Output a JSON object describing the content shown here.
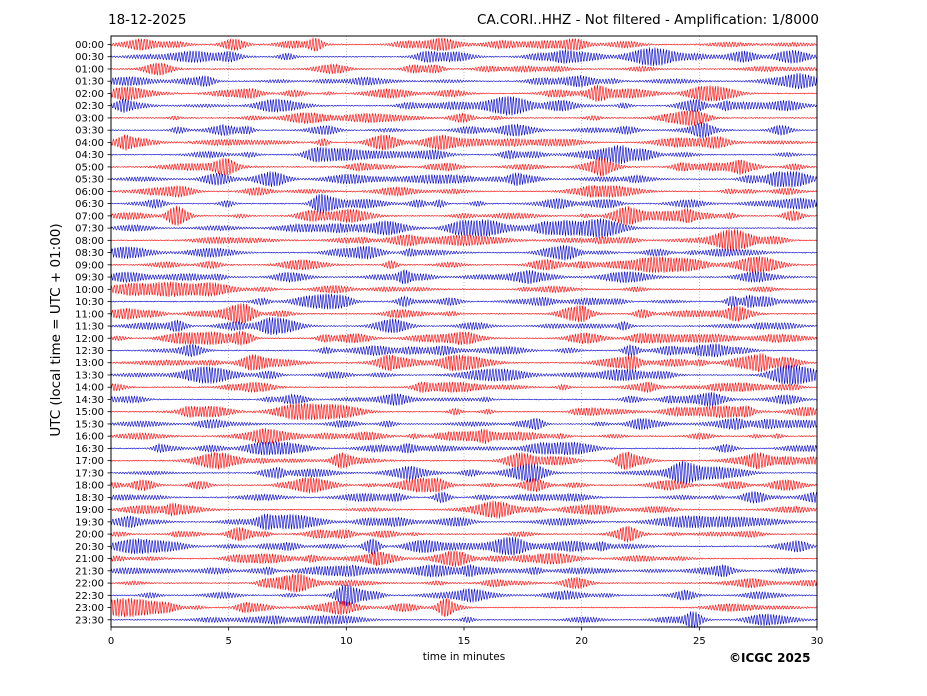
{
  "header": {
    "date": "18-12-2025",
    "title": "CA.CORI..HHZ - Not filtered - Amplification: 1/8000"
  },
  "footer": {
    "credit": "©ICGC 2025"
  },
  "colors": {
    "trace_a": "#ff0000",
    "trace_b": "#0000cc",
    "grid": "#999999",
    "axes": "#000000"
  },
  "chart_data": {
    "type": "line",
    "subtype": "seismic helicorder (drum) plot",
    "title": "CA.CORI..HHZ - Not filtered - Amplification: 1/8000",
    "subtitle": "18-12-2025",
    "xlabel": "time in minutes",
    "ylabel": "UTC (local time = UTC + 01:00)",
    "xlim": [
      0,
      30
    ],
    "x_ticks": [
      0,
      5,
      10,
      15,
      20,
      25,
      30
    ],
    "y_ticks": [
      "00:00",
      "00:30",
      "01:00",
      "01:30",
      "02:00",
      "02:30",
      "03:00",
      "03:30",
      "04:00",
      "04:30",
      "05:00",
      "05:30",
      "06:00",
      "06:30",
      "07:00",
      "07:30",
      "08:00",
      "08:30",
      "09:00",
      "09:30",
      "10:00",
      "10:30",
      "11:00",
      "11:30",
      "12:00",
      "12:30",
      "13:00",
      "13:30",
      "14:00",
      "14:30",
      "15:00",
      "15:30",
      "16:00",
      "16:30",
      "17:00",
      "17:30",
      "18:00",
      "18:30",
      "19:00",
      "19:30",
      "20:00",
      "20:30",
      "21:00",
      "21:30",
      "22:00",
      "22:30",
      "23:00",
      "23:30"
    ],
    "grid": true,
    "grid_style": "dotted vertical lines at each x tick",
    "line_colors": "alternating red / blue per row, starting red at 00:00"
  }
}
